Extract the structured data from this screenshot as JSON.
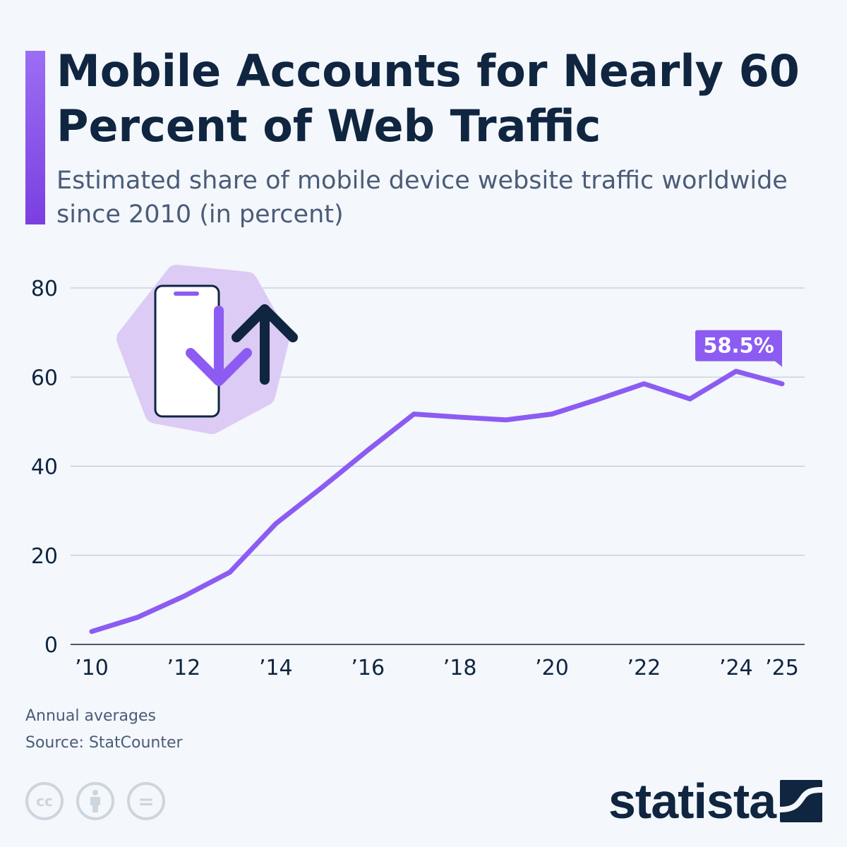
{
  "header": {
    "title": "Mobile Accounts for Nearly 60 Percent of Web Traffic",
    "subtitle": "Estimated share of mobile device website traffic worldwide since 2010 (in percent)"
  },
  "chart_data": {
    "type": "line",
    "title": "Mobile Accounts for Nearly 60 Percent of Web Traffic",
    "subtitle": "Estimated share of mobile device website traffic worldwide since 2010 (in percent)",
    "x": [
      2010,
      2011,
      2012,
      2013,
      2014,
      2015,
      2016,
      2017,
      2018,
      2019,
      2020,
      2021,
      2022,
      2023,
      2024,
      2025
    ],
    "series": [
      {
        "values": [
          2.9,
          6.1,
          10.8,
          16.2,
          27.1,
          35.2,
          43.6,
          51.7,
          51.0,
          50.4,
          51.7,
          55.0,
          58.5,
          55.1,
          61.3,
          58.5
        ],
        "color": "#8c5cf2"
      }
    ],
    "xticks": [
      {
        "v": 2010,
        "label": "’10"
      },
      {
        "v": 2012,
        "label": "’12"
      },
      {
        "v": 2014,
        "label": "’14"
      },
      {
        "v": 2016,
        "label": "’16"
      },
      {
        "v": 2018,
        "label": "’18"
      },
      {
        "v": 2020,
        "label": "’20"
      },
      {
        "v": 2022,
        "label": "’22"
      },
      {
        "v": 2024,
        "label": "’24"
      },
      {
        "v": 2025,
        "label": "’25"
      }
    ],
    "yticks": [
      0,
      20,
      40,
      60,
      80
    ],
    "ylim": [
      0,
      80
    ],
    "grid": true,
    "annotation": {
      "x": 2025,
      "label": "58.5%"
    }
  },
  "footer": {
    "note": "Annual averages",
    "source": "Source: StatCounter",
    "brand": "statista",
    "cc_icons": [
      "cc-icon",
      "attribution-icon",
      "no-derivatives-icon"
    ],
    "cc_label": "cc",
    "nd_label": "="
  },
  "colors": {
    "accent": "#8c5cf2",
    "title": "#0f2540",
    "text": "#4a5c78",
    "icon_bg": "#dccbf4"
  }
}
